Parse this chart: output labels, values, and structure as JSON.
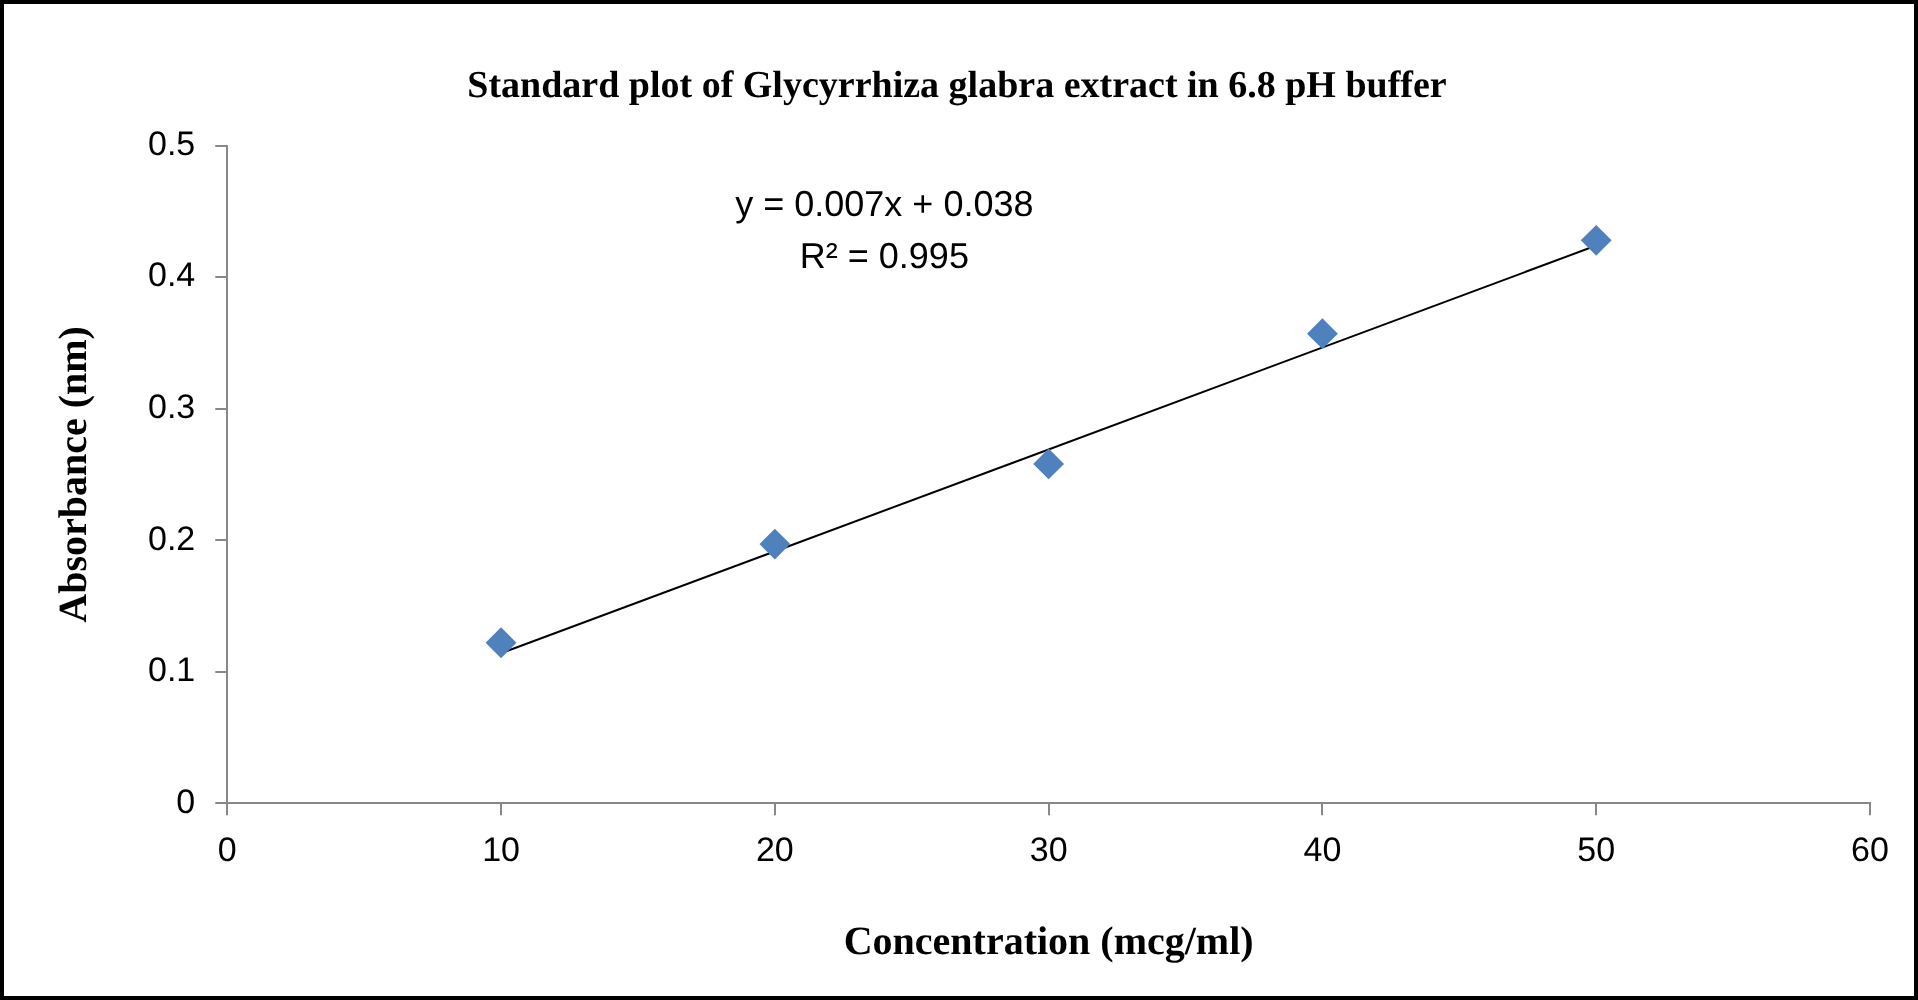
{
  "chart_data": {
    "type": "scatter",
    "title": "Standard plot of Glycyrrhiza glabra extract in 6.8 pH buffer",
    "xlabel": "Concentration (mcg/ml)",
    "ylabel": "Absorbance (nm)",
    "xlim": [
      0,
      60
    ],
    "xticks": [
      0,
      10,
      20,
      30,
      40,
      50,
      60
    ],
    "ylim": [
      0,
      0.5
    ],
    "yticks": [
      0,
      0.1,
      0.2,
      0.3,
      0.4,
      0.5
    ],
    "series": [
      {
        "color": "#4f81bd",
        "marker": "diamond",
        "x": [
          10,
          20,
          30,
          40,
          50
        ],
        "values": [
          0.122,
          0.197,
          0.258,
          0.357,
          0.428
        ]
      },
      {
        "type": "line",
        "color": "#000000",
        "marker": "none",
        "x": [
          10,
          50
        ],
        "values": [
          0.114,
          0.424
        ]
      }
    ],
    "annotations": [
      "y = 0.007x + 0.038",
      "R² = 0.995"
    ],
    "grid": false,
    "legend": false
  }
}
